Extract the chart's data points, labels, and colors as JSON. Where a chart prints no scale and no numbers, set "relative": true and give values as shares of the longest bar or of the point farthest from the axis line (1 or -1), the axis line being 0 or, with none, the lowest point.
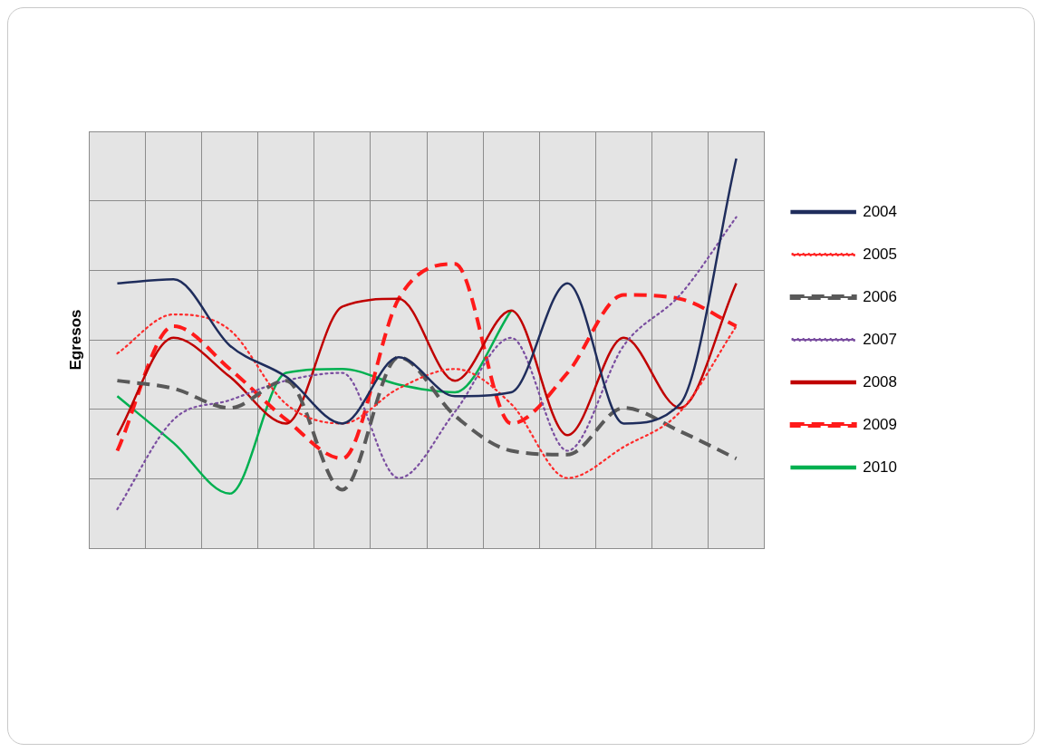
{
  "chart_data": {
    "type": "line",
    "ylabel": "Egresos",
    "relative": true,
    "grid": true,
    "legend": "right",
    "marker": "none",
    "tick_labels": false,
    "categories": [
      null,
      null,
      null,
      null,
      null,
      null,
      null,
      null,
      null,
      null,
      null,
      null
    ],
    "series": [
      {
        "name": "2004",
        "color": "#1f2d5c",
        "line_style": "solid",
        "values": [
          0.68,
          0.69,
          0.52,
          0.44,
          0.32,
          0.49,
          0.39,
          0.4,
          0.68,
          0.32,
          0.37,
          1
        ]
      },
      {
        "name": "2005",
        "color": "#ff2a2a",
        "line_style": "dotted",
        "values": [
          0.5,
          0.6,
          0.56,
          0.37,
          0.32,
          0.41,
          0.46,
          0.37,
          0.18,
          0.26,
          0.35,
          0.57
        ]
      },
      {
        "name": "2006",
        "color": "#595959",
        "line_style": "dashed",
        "values": [
          0.43,
          0.41,
          0.36,
          0.43,
          0.15,
          0.49,
          0.34,
          0.25,
          0.24,
          0.36,
          0.3,
          0.23
        ]
      },
      {
        "name": "2007",
        "color": "#7a4ea0",
        "line_style": "dotted",
        "values": [
          0.1,
          0.33,
          0.38,
          0.43,
          0.45,
          0.18,
          0.35,
          0.54,
          0.25,
          0.52,
          0.65,
          0.85
        ]
      },
      {
        "name": "2008",
        "color": "#c00000",
        "line_style": "solid",
        "values": [
          0.29,
          0.54,
          0.44,
          0.32,
          0.62,
          0.64,
          0.43,
          0.61,
          0.29,
          0.54,
          0.36,
          0.68
        ]
      },
      {
        "name": "2009",
        "color": "#ff1a1a",
        "line_style": "dashed",
        "values": [
          0.25,
          0.57,
          0.46,
          0.33,
          0.23,
          0.64,
          0.73,
          0.32,
          0.45,
          0.65,
          0.64,
          0.57
        ]
      },
      {
        "name": "2010",
        "color": "#00b050",
        "line_style": "solid",
        "values": [
          0.39,
          0.27,
          0.14,
          0.45,
          0.46,
          0.42,
          0.4,
          0.61,
          null,
          null,
          null,
          null
        ]
      }
    ]
  }
}
